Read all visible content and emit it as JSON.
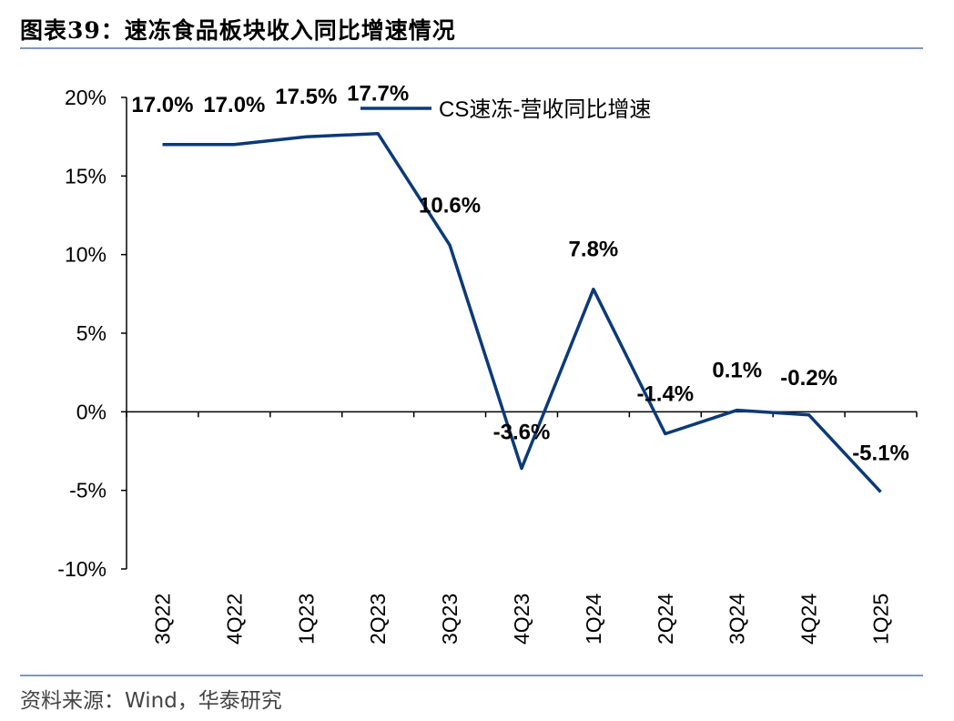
{
  "header": {
    "figure_label": "图表39：",
    "title": "速冻食品板块收入同比增速情况"
  },
  "footer": {
    "source": "资料来源：Wind，华泰研究"
  },
  "chart_data": {
    "type": "line",
    "categories": [
      "3Q22",
      "4Q22",
      "1Q23",
      "2Q23",
      "3Q23",
      "4Q23",
      "1Q24",
      "2Q24",
      "3Q24",
      "4Q24",
      "1Q25"
    ],
    "series": [
      {
        "name": "CS速冻-营收同比增速",
        "values": [
          17.0,
          17.0,
          17.5,
          17.7,
          10.6,
          -3.6,
          7.8,
          -1.4,
          0.1,
          -0.2,
          -5.1
        ],
        "labels": [
          "17.0%",
          "17.0%",
          "17.5%",
          "17.7%",
          "10.6%",
          "-3.6%",
          "7.8%",
          "-1.4%",
          "0.1%",
          "-0.2%",
          "-5.1%"
        ],
        "color": "#0b3a78"
      }
    ],
    "ylim": [
      -10,
      20
    ],
    "yticks": [
      20,
      15,
      10,
      5,
      0,
      -5,
      -10
    ],
    "ytick_labels": [
      "20%",
      "15%",
      "10%",
      "5%",
      "0%",
      "-5%",
      "-10%"
    ],
    "legend_position": "top-right",
    "grid": false
  }
}
